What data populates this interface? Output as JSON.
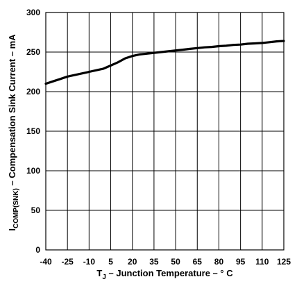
{
  "chart_data": {
    "type": "line",
    "x": [
      -40,
      -35,
      -30,
      -25,
      -20,
      -15,
      -10,
      -5,
      0,
      5,
      10,
      15,
      20,
      25,
      30,
      35,
      40,
      45,
      50,
      55,
      60,
      65,
      70,
      75,
      80,
      85,
      90,
      95,
      100,
      105,
      110,
      115,
      120,
      125
    ],
    "series": [
      {
        "values": [
          210,
          213,
          216,
          219,
          221,
          223,
          225,
          227,
          229,
          233,
          237,
          242,
          245,
          247,
          248,
          249,
          250,
          251,
          252,
          253,
          254,
          255,
          256,
          256.5,
          257.5,
          258,
          259,
          259.5,
          260.5,
          261,
          261.5,
          262.5,
          263.5,
          264
        ]
      }
    ],
    "xlim": [
      -40,
      125
    ],
    "ylim": [
      0,
      300
    ],
    "xticks": [
      "-40",
      "-25",
      "-10",
      "5",
      "20",
      "35",
      "50",
      "65",
      "80",
      "95",
      "110",
      "125"
    ],
    "xtick_values": [
      -40,
      -25,
      -10,
      5,
      20,
      35,
      50,
      65,
      80,
      95,
      110,
      125
    ],
    "yticks": [
      "0",
      "50",
      "100",
      "150",
      "200",
      "250",
      "300"
    ],
    "ytick_values": [
      0,
      50,
      100,
      150,
      200,
      250,
      300
    ],
    "xlabel_main": "T",
    "xlabel_sub": "J",
    "xlabel_rest": " – Junction Temperature – ° C",
    "ylabel_main": "I",
    "ylabel_sub": "COMP(SNK)",
    "ylabel_rest": " – Compensation Sink Current –  mA",
    "grid": true,
    "legend": "none"
  }
}
